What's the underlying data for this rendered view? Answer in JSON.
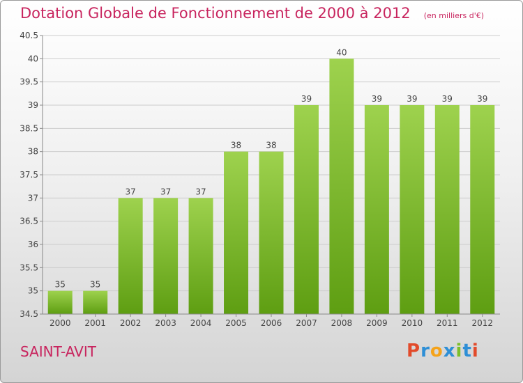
{
  "header": {
    "title": "Dotation Globale de Fonctionnement de 2000 à 2012",
    "subtitle": "(en milliers d'€)"
  },
  "footer": {
    "city": "SAINT-AVIT",
    "logo_text": "Proxiti"
  },
  "colors": {
    "title": "#c8245e",
    "bar_top": "#9ed24e",
    "bar_bottom": "#5e9e12",
    "gridline": "#cccccc",
    "logo": [
      "#e24b2b",
      "#2e8fd6",
      "#f5a31a",
      "#2e8fd6",
      "#7cbf2a",
      "#2e8fd6",
      "#e24b2b"
    ]
  },
  "chart_data": {
    "type": "bar",
    "categories": [
      "2000",
      "2001",
      "2002",
      "2003",
      "2004",
      "2005",
      "2006",
      "2007",
      "2008",
      "2009",
      "2010",
      "2011",
      "2012"
    ],
    "values": [
      35,
      35,
      37,
      37,
      37,
      38,
      38,
      39,
      40,
      39,
      39,
      39,
      39
    ],
    "data_labels": [
      "35",
      "35",
      "37",
      "37",
      "37",
      "38",
      "38",
      "39",
      "40",
      "39",
      "39",
      "39",
      "39"
    ],
    "ylim": [
      34.5,
      40.5
    ],
    "yticks": [
      34.5,
      35,
      35.5,
      36,
      36.5,
      37,
      37.5,
      38,
      38.5,
      39,
      39.5,
      40,
      40.5
    ],
    "ytick_labels": [
      "34.5",
      "35",
      "35.5",
      "36",
      "36.5",
      "37",
      "37.5",
      "38",
      "38.5",
      "39",
      "39.5",
      "40",
      "40.5"
    ],
    "grid": true
  }
}
